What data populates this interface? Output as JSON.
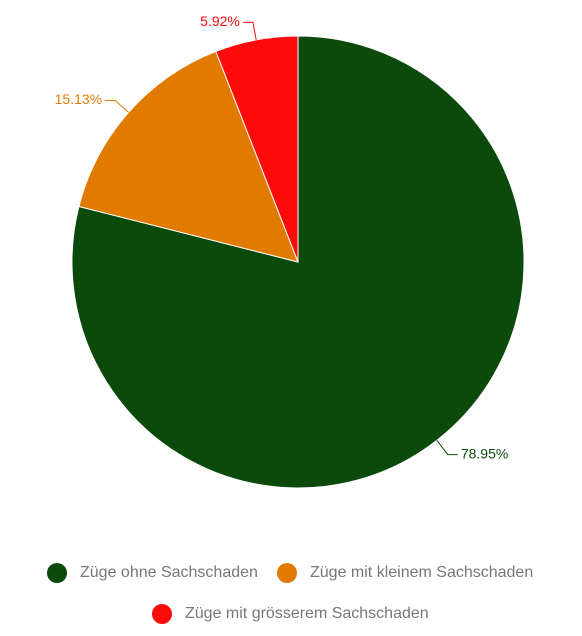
{
  "chart_data": {
    "type": "pie",
    "categories": [
      "Züge ohne Sachschaden",
      "Züge mit kleinem Sachschaden",
      "Züge mit grösserem Sachschaden"
    ],
    "values": [
      78.95,
      15.13,
      5.92
    ],
    "value_labels": [
      "78.95%",
      "15.13%",
      "5.92%"
    ],
    "colors": [
      "#0b4a0b",
      "#e07b00",
      "#ff0a0a"
    ],
    "legend": "bottom"
  }
}
